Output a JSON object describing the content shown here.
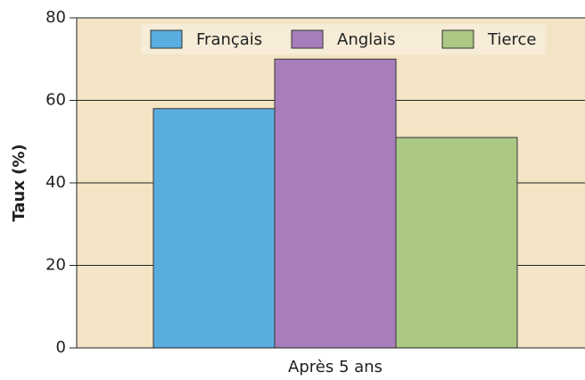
{
  "chart_data": {
    "type": "bar",
    "y_label": "Taux (%)",
    "categories": [
      "Après 5 ans"
    ],
    "series": [
      {
        "name": "Français",
        "color": "#5aaddf",
        "values": [
          58
        ]
      },
      {
        "name": "Anglais",
        "color": "#a77ebb",
        "values": [
          70
        ]
      },
      {
        "name": "Tierce",
        "color": "#abc985",
        "values": [
          51
        ]
      }
    ],
    "ylim": [
      0,
      80
    ],
    "yticks": [
      0,
      20,
      40,
      60,
      80
    ],
    "grid": true,
    "legend": "top"
  }
}
